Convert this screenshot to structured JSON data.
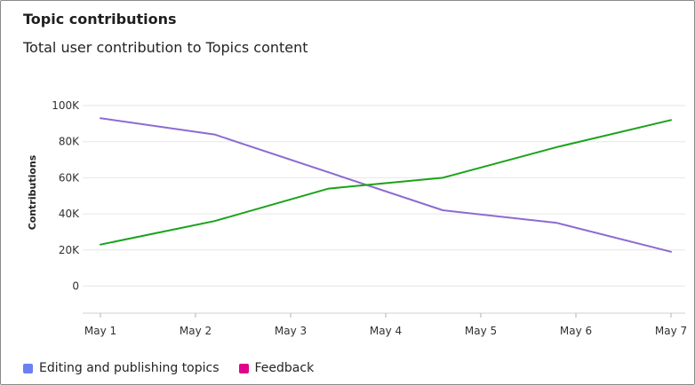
{
  "card": {
    "title": "Topic contributions",
    "subtitle": "Total user contribution to Topics content"
  },
  "legend": [
    {
      "label": "Editing and publishing topics",
      "color": "#6b80f2"
    },
    {
      "label": "Feedback",
      "color": "#e3008c"
    }
  ],
  "chart_data": {
    "type": "line",
    "title": "Topic contributions",
    "subtitle": "Total user contribution to Topics content",
    "xlabel": "",
    "ylabel": "Contributions",
    "categories": [
      "May 1",
      "May 2",
      "May 3",
      "May 4",
      "May 5",
      "May 6",
      "May 7"
    ],
    "x": [
      1,
      2.2,
      3.4,
      4.6,
      5.8,
      7
    ],
    "x_range": [
      1,
      7
    ],
    "y_ticks": [
      {
        "value": 0,
        "label": "0"
      },
      {
        "value": 20000,
        "label": "20K"
      },
      {
        "value": 40000,
        "label": "40K"
      },
      {
        "value": 60000,
        "label": "60K"
      },
      {
        "value": 80000,
        "label": "80K"
      },
      {
        "value": 100000,
        "label": "100K"
      }
    ],
    "ylim": [
      -15000,
      100000
    ],
    "grid": true,
    "legend_position": "bottom-left",
    "series": [
      {
        "color": "#8c6bd1",
        "values": [
          93000,
          84000,
          null,
          42000,
          35000,
          19000
        ]
      },
      {
        "color": "#1aa31a",
        "values": [
          23000,
          36000,
          54000,
          60000,
          77000,
          92000
        ]
      }
    ]
  }
}
